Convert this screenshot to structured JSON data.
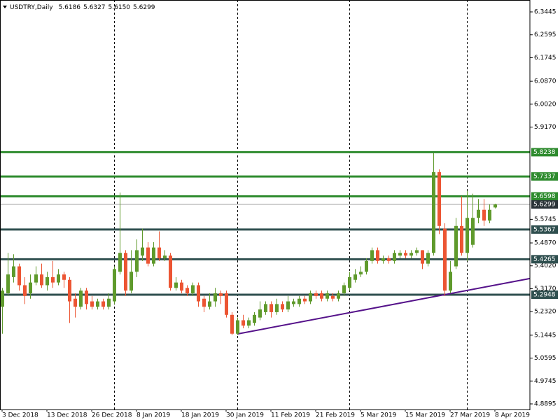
{
  "chart_data": {
    "type": "candlestick",
    "header": {
      "symbol": "USDTRY,Daily",
      "open": "5.6186",
      "high": "5.6327",
      "low": "5.6150",
      "close": "5.6299"
    },
    "categories": [
      "3 Dec 2018",
      null,
      null,
      null,
      null,
      null,
      null,
      null,
      "13 Dec 2018",
      null,
      null,
      null,
      null,
      null,
      null,
      null,
      "26 Dec 2018",
      null,
      null,
      null,
      null,
      null,
      null,
      null,
      "8 Jan 2019",
      null,
      null,
      null,
      null,
      null,
      null,
      null,
      "18 Jan 2019",
      null,
      null,
      null,
      null,
      null,
      null,
      null,
      "30 Jan 2019",
      null,
      null,
      null,
      null,
      null,
      null,
      null,
      "11 Feb 2019",
      null,
      null,
      null,
      null,
      null,
      null,
      null,
      "21 Feb 2019",
      null,
      null,
      null,
      null,
      null,
      null,
      null,
      "5 Mar 2019",
      null,
      null,
      null,
      null,
      null,
      null,
      null,
      "15 Mar 2019",
      null,
      null,
      null,
      null,
      null,
      null,
      null,
      "27 Mar 2019",
      null,
      null,
      null,
      null,
      null,
      null,
      null,
      "8 Apr 2019"
    ],
    "open": [
      5.25,
      5.3,
      5.36,
      5.4,
      5.33,
      5.3,
      5.34,
      5.37,
      5.33,
      5.36,
      5.34,
      5.37,
      5.35,
      5.28,
      5.25,
      5.31,
      5.27,
      5.25,
      5.27,
      5.25,
      5.27,
      5.38,
      5.45,
      5.31,
      5.38,
      5.44,
      5.47,
      5.41,
      5.47,
      5.43,
      5.44,
      5.32,
      5.34,
      5.32,
      5.3,
      5.33,
      5.28,
      5.25,
      5.27,
      5.3,
      5.3,
      5.22,
      5.15,
      5.2,
      5.18,
      5.19,
      5.21,
      5.23,
      5.26,
      5.23,
      5.26,
      5.24,
      5.26,
      5.26,
      5.28,
      5.27,
      5.3,
      5.3,
      5.28,
      5.29,
      5.28,
      5.3,
      5.32,
      5.35,
      5.37,
      5.38,
      5.42,
      5.46,
      5.42,
      5.43,
      5.42,
      5.44,
      5.45,
      5.44,
      5.45,
      5.46,
      5.41,
      5.45,
      5.75,
      5.54,
      5.31,
      5.4,
      5.55,
      5.45,
      5.48,
      5.58,
      5.61,
      5.57,
      5.6186
    ],
    "high": [
      5.32,
      5.45,
      5.445,
      5.41,
      5.36,
      5.37,
      5.4,
      5.41,
      5.38,
      5.42,
      5.39,
      5.38,
      5.36,
      5.3,
      5.32,
      5.32,
      5.29,
      5.28,
      5.28,
      5.3,
      5.4,
      5.674,
      5.46,
      5.46,
      5.5,
      5.54,
      5.49,
      5.49,
      5.53,
      5.46,
      5.45,
      5.36,
      5.35,
      5.33,
      5.34,
      5.34,
      5.29,
      5.3,
      5.32,
      5.31,
      5.31,
      5.23,
      5.21,
      5.22,
      5.21,
      5.23,
      5.27,
      5.27,
      5.27,
      5.28,
      5.27,
      5.29,
      5.28,
      5.29,
      5.29,
      5.31,
      5.31,
      5.31,
      5.31,
      5.3,
      5.31,
      5.34,
      5.38,
      5.39,
      5.4,
      5.43,
      5.47,
      5.47,
      5.44,
      5.44,
      5.46,
      5.46,
      5.46,
      5.46,
      5.47,
      5.46,
      5.46,
      5.82,
      5.76,
      5.56,
      5.42,
      5.58,
      5.66,
      5.68,
      5.67,
      5.65,
      5.65,
      5.63,
      5.6327
    ],
    "low": [
      5.15,
      5.29,
      5.34,
      5.31,
      5.26,
      5.28,
      5.33,
      5.32,
      5.31,
      5.32,
      5.33,
      5.32,
      5.19,
      5.21,
      5.24,
      5.24,
      5.24,
      5.24,
      5.24,
      5.24,
      5.26,
      5.37,
      5.29,
      5.3,
      5.36,
      5.42,
      5.4,
      5.4,
      5.42,
      5.42,
      5.31,
      5.31,
      5.3,
      5.29,
      5.29,
      5.25,
      5.23,
      5.24,
      5.25,
      5.26,
      5.21,
      5.145,
      5.145,
      5.17,
      5.17,
      5.18,
      5.2,
      5.22,
      5.21,
      5.22,
      5.23,
      5.23,
      5.25,
      5.25,
      5.26,
      5.26,
      5.28,
      5.27,
      5.27,
      5.27,
      5.27,
      5.29,
      5.31,
      5.34,
      5.36,
      5.37,
      5.41,
      5.41,
      5.41,
      5.41,
      5.41,
      5.43,
      5.43,
      5.43,
      5.44,
      5.39,
      5.4,
      5.44,
      5.52,
      5.29,
      5.3,
      5.39,
      5.44,
      5.42,
      5.47,
      5.56,
      5.55,
      5.56,
      5.615
    ],
    "close": [
      5.31,
      5.37,
      5.4,
      5.33,
      5.29,
      5.34,
      5.37,
      5.33,
      5.36,
      5.34,
      5.37,
      5.35,
      5.27,
      5.25,
      5.31,
      5.26,
      5.25,
      5.27,
      5.25,
      5.28,
      5.39,
      5.45,
      5.31,
      5.38,
      5.46,
      5.47,
      5.41,
      5.47,
      5.43,
      5.44,
      5.32,
      5.34,
      5.31,
      5.3,
      5.33,
      5.27,
      5.25,
      5.27,
      5.3,
      5.29,
      5.22,
      5.15,
      5.2,
      5.18,
      5.2,
      5.22,
      5.24,
      5.26,
      5.23,
      5.26,
      5.24,
      5.27,
      5.27,
      5.28,
      5.27,
      5.3,
      5.29,
      5.28,
      5.3,
      5.28,
      5.3,
      5.33,
      5.36,
      5.37,
      5.38,
      5.42,
      5.46,
      5.42,
      5.43,
      5.42,
      5.45,
      5.45,
      5.44,
      5.45,
      5.46,
      5.41,
      5.45,
      5.75,
      5.55,
      5.31,
      5.38,
      5.55,
      5.45,
      5.58,
      5.58,
      5.61,
      5.57,
      5.61,
      5.6299
    ],
    "up_color": "#5f9a2c",
    "down_color": "#ec5533",
    "xlim": [
      -0.375,
      94.25
    ],
    "ylim": [
      4.8687,
      6.3887
    ],
    "yticks": [
      6.3445,
      6.2595,
      6.1745,
      {
        "value": 6.087,
        "label": "6.0870"
      },
      {
        "value": 6.002,
        "label": "6.0020"
      },
      {
        "value": 5.917,
        "label": "5.9170"
      },
      5.5745,
      {
        "value": 5.487,
        "label": "5.4870"
      },
      {
        "value": 5.402,
        "label": "5.4020"
      },
      {
        "value": 5.317,
        "label": "5.3170"
      },
      {
        "value": 5.232,
        "label": "5.2320"
      },
      5.1445,
      5.0595,
      4.9745,
      4.8895
    ],
    "levels": [
      {
        "value": 5.8238,
        "color": "#2e8b2e"
      },
      {
        "value": 5.7337,
        "color": "#2e8b2e"
      },
      {
        "value": 5.6598,
        "color": "#2e8b2e"
      },
      {
        "value": 5.5367,
        "color": "#2f4f4f"
      },
      {
        "value": 5.4265,
        "color": "#2f4f4f"
      },
      {
        "value": 5.2948,
        "color": "#2f4f4f"
      }
    ],
    "current_price": 5.6299,
    "trendline": {
      "x": [
        42,
        94.25
      ],
      "y": [
        5.149,
        5.355
      ],
      "color": "#55128a"
    },
    "period_separators": [
      20,
      42,
      62,
      83
    ]
  }
}
